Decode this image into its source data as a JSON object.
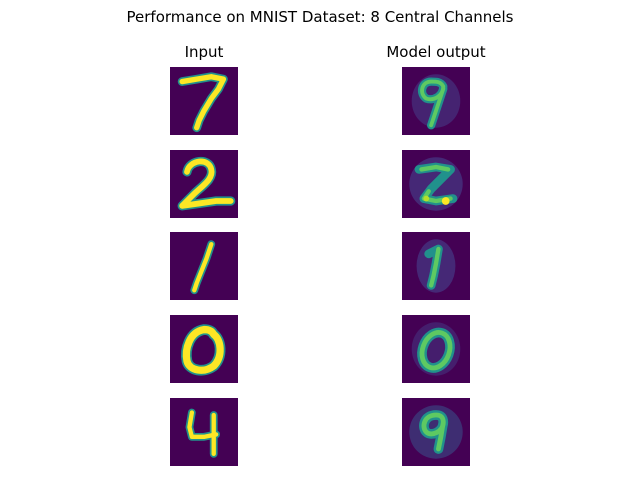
{
  "title": "Performance on MNIST Dataset: 8 Central Channels",
  "columns": {
    "input": "Input",
    "output": "Model output"
  },
  "colors": {
    "background": "#440154",
    "dim": "#3b528b",
    "mid": "#21918c",
    "bright": "#5ec962",
    "peak": "#fde725"
  },
  "samples": [
    {
      "input_digit": "7",
      "output_digit": "9"
    },
    {
      "input_digit": "2",
      "output_digit": "2"
    },
    {
      "input_digit": "1",
      "output_digit": "1"
    },
    {
      "input_digit": "0",
      "output_digit": "0"
    },
    {
      "input_digit": "4",
      "output_digit": "9"
    }
  ]
}
